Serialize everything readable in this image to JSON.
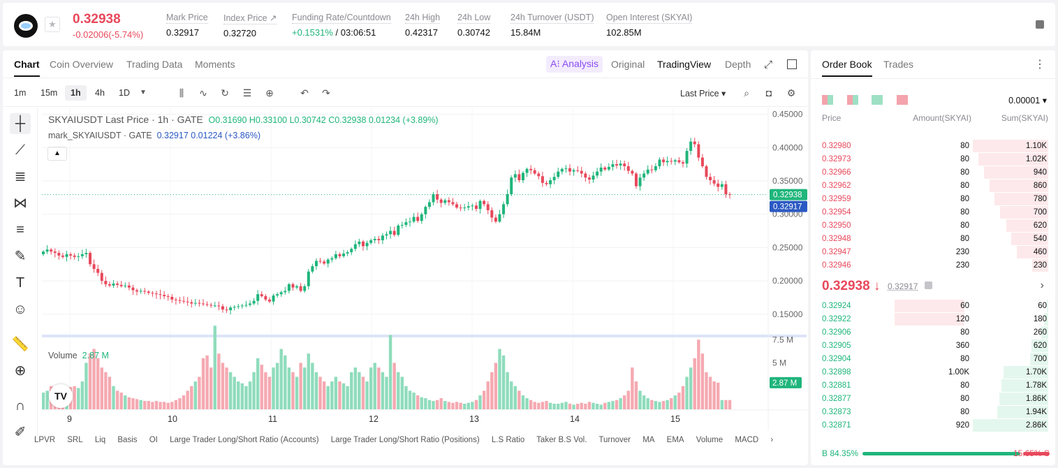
{
  "header": {
    "last_price": "0.32938",
    "change": "-0.02006(-5.74%)",
    "stats": [
      {
        "label": "Mark Price",
        "value": "0.32917"
      },
      {
        "label": "Index Price ↗",
        "value": "0.32720"
      },
      {
        "label": "Funding Rate/Countdown",
        "value_green": "+0.1531%",
        "value": "/ 03:06:51"
      },
      {
        "label": "24h High",
        "value": "0.42317"
      },
      {
        "label": "24h Low",
        "value": "0.30742"
      },
      {
        "label": "24h Turnover (USDT)",
        "value": "15.84M"
      },
      {
        "label": "Open Interest (SKYAI)",
        "value": "102.85M"
      }
    ]
  },
  "chart_tabs": {
    "left": [
      "Chart",
      "Coin Overview",
      "Trading Data",
      "Moments"
    ],
    "ai": "A⁝ Analysis",
    "right": [
      "Original",
      "TradingView",
      "Depth"
    ]
  },
  "toolbar": {
    "timeframes": [
      "1m",
      "15m",
      "1h",
      "4h",
      "1D"
    ],
    "price_type": "Last Price ▾"
  },
  "legend": {
    "main_title": "SKYAIUSDT Last Price · 1h · GATE",
    "ohlc": "O0.31690  H0.33100  L0.30742  C0.32938  0.01234 (+3.89%)",
    "mark_title": "mark_SKYAIUSDT · GATE",
    "mark_values": "0.32917  0.01224 (+3.86%)",
    "volume_label": "Volume",
    "volume_value": "2.87 M"
  },
  "bottom_indicators": [
    "LPVR",
    "SRL",
    "Liq",
    "Basis",
    "OI",
    "Large Trader Long/Short Ratio (Accounts)",
    "Large Trader Long/Short Ratio (Positions)",
    "L.S Ratio",
    "Taker B.S Vol.",
    "Turnover",
    "MA",
    "EMA",
    "Volume",
    "MACD"
  ],
  "chart_data": {
    "type": "candlestick",
    "price_axis": {
      "ticks": [
        "0.45000",
        "0.40000",
        "0.35000",
        "0.30000",
        "0.25000",
        "0.20000",
        "0.15000"
      ],
      "range": [
        0.11,
        0.46
      ]
    },
    "volume_axis": {
      "ticks": [
        "7.5 M",
        "5 M"
      ]
    },
    "x_ticks": [
      "9",
      "10",
      "11",
      "12",
      "13",
      "14",
      "15"
    ],
    "last_price_label": "0.32938",
    "mark_price_label": "0.32917",
    "volume_last_label": "2.87 M",
    "close_series": [
      0.244,
      0.247,
      0.244,
      0.242,
      0.238,
      0.236,
      0.24,
      0.238,
      0.236,
      0.237,
      0.24,
      0.242,
      0.225,
      0.218,
      0.212,
      0.2,
      0.195,
      0.193,
      0.196,
      0.194,
      0.192,
      0.193,
      0.19,
      0.186,
      0.184,
      0.185,
      0.184,
      0.182,
      0.181,
      0.18,
      0.179,
      0.177,
      0.176,
      0.172,
      0.171,
      0.17,
      0.169,
      0.168,
      0.166,
      0.167,
      0.166,
      0.165,
      0.164,
      0.163,
      0.163,
      0.162,
      0.157,
      0.156,
      0.16,
      0.161,
      0.162,
      0.163,
      0.164,
      0.166,
      0.17,
      0.18,
      0.177,
      0.172,
      0.169,
      0.178,
      0.18,
      0.183,
      0.185,
      0.195,
      0.19,
      0.192,
      0.185,
      0.192,
      0.214,
      0.222,
      0.23,
      0.229,
      0.226,
      0.232,
      0.234,
      0.24,
      0.237,
      0.241,
      0.243,
      0.248,
      0.255,
      0.259,
      0.252,
      0.257,
      0.261,
      0.263,
      0.261,
      0.268,
      0.27,
      0.275,
      0.269,
      0.283,
      0.284,
      0.288,
      0.289,
      0.296,
      0.29,
      0.3,
      0.311,
      0.318,
      0.33,
      0.322,
      0.317,
      0.321,
      0.318,
      0.315,
      0.31,
      0.309,
      0.31,
      0.312,
      0.313,
      0.308,
      0.32,
      0.315,
      0.306,
      0.295,
      0.289,
      0.3,
      0.315,
      0.33,
      0.355,
      0.36,
      0.351,
      0.362,
      0.368,
      0.366,
      0.361,
      0.357,
      0.347,
      0.345,
      0.351,
      0.356,
      0.364,
      0.368,
      0.369,
      0.364,
      0.366,
      0.365,
      0.361,
      0.355,
      0.352,
      0.358,
      0.364,
      0.37,
      0.367,
      0.371,
      0.375,
      0.373,
      0.376,
      0.372,
      0.365,
      0.361,
      0.342,
      0.355,
      0.361,
      0.367,
      0.366,
      0.372,
      0.382,
      0.378,
      0.38,
      0.379,
      0.381,
      0.378,
      0.376,
      0.395,
      0.409,
      0.405,
      0.385,
      0.372,
      0.356,
      0.351,
      0.346,
      0.341,
      0.345,
      0.33,
      0.3294
    ],
    "volume_series": [
      1.8,
      2.0,
      2.5,
      2.3,
      2.2,
      1.9,
      2.1,
      2.4,
      2.5,
      2.3,
      3.0,
      5.0,
      6.0,
      6.5,
      5.5,
      4.5,
      4.0,
      3.5,
      2.5,
      2.0,
      1.8,
      1.5,
      1.3,
      1.2,
      1.1,
      1.0,
      0.9,
      0.9,
      0.8,
      0.9,
      0.8,
      0.8,
      0.7,
      0.8,
      1.0,
      1.2,
      1.5,
      2.0,
      2.5,
      3.0,
      3.5,
      5.5,
      5.8,
      4.5,
      9.0,
      6.0,
      5.0,
      4.5,
      4.0,
      3.5,
      3.0,
      2.8,
      2.5,
      3.0,
      4.0,
      5.5,
      4.8,
      4.0,
      3.5,
      4.5,
      5.0,
      6.5,
      5.8,
      4.5,
      4.0,
      3.5,
      5.0,
      4.5,
      6.0,
      5.0,
      4.0,
      3.5,
      3.0,
      2.5,
      3.0,
      3.5,
      3.0,
      2.8,
      2.5,
      4.0,
      4.5,
      4.0,
      3.5,
      3.0,
      4.5,
      5.0,
      4.5,
      4.0,
      3.5,
      8.0,
      5.0,
      4.0,
      3.5,
      2.5,
      2.0,
      1.8,
      1.5,
      1.3,
      1.2,
      1.0,
      0.9,
      1.0,
      1.2,
      0.9,
      0.8,
      0.7,
      0.8,
      0.7,
      0.6,
      0.7,
      0.8,
      1.0,
      1.5,
      2.0,
      3.0,
      4.0,
      5.0,
      6.5,
      5.8,
      4.0,
      3.0,
      2.5,
      2.0,
      1.5,
      1.2,
      1.0,
      0.8,
      0.7,
      0.8,
      0.9,
      0.7,
      0.6,
      0.6,
      0.7,
      0.8,
      0.6,
      0.5,
      0.6,
      0.7,
      0.6,
      0.8,
      0.7,
      0.6,
      0.5,
      0.7,
      0.8,
      0.9,
      1.0,
      1.2,
      1.5,
      2.0,
      4.5,
      3.0,
      2.0,
      1.5,
      1.2,
      1.0,
      0.9,
      0.8,
      0.9,
      1.0,
      1.2,
      1.5,
      1.8,
      2.5,
      3.5,
      4.5,
      5.5,
      7.5,
      6.0,
      4.0,
      3.5,
      3.0,
      2.87
    ]
  },
  "orderbook": {
    "tabs": [
      "Order Book",
      "Trades"
    ],
    "precision": "0.00001 ▾",
    "headers": {
      "price": "Price",
      "amount": "Amount(SKYAI)",
      "sum": "Sum(SKYAI)"
    },
    "asks": [
      {
        "price": "0.32980",
        "amount": "80",
        "sum": "1.10K",
        "depth": 1.0
      },
      {
        "price": "0.32973",
        "amount": "80",
        "sum": "1.02K",
        "depth": 0.93
      },
      {
        "price": "0.32966",
        "amount": "80",
        "sum": "940",
        "depth": 0.85
      },
      {
        "price": "0.32962",
        "amount": "80",
        "sum": "860",
        "depth": 0.78
      },
      {
        "price": "0.32959",
        "amount": "80",
        "sum": "780",
        "depth": 0.71
      },
      {
        "price": "0.32954",
        "amount": "80",
        "sum": "700",
        "depth": 0.64
      },
      {
        "price": "0.32950",
        "amount": "80",
        "sum": "620",
        "depth": 0.56
      },
      {
        "price": "0.32948",
        "amount": "80",
        "sum": "540",
        "depth": 0.49
      },
      {
        "price": "0.32947",
        "amount": "230",
        "sum": "460",
        "depth": 0.42
      },
      {
        "price": "0.32946",
        "amount": "230",
        "sum": "230",
        "depth": 0.21
      }
    ],
    "mid_price": "0.32938 ↓",
    "mid_mark": "0.32917",
    "bids": [
      {
        "price": "0.32924",
        "amount": "60",
        "sum": "60",
        "depth": 0.02,
        "amt_depth": 0.35
      },
      {
        "price": "0.32922",
        "amount": "120",
        "sum": "180",
        "depth": 0.06,
        "amt_depth": 0.35
      },
      {
        "price": "0.32906",
        "amount": "80",
        "sum": "260",
        "depth": 0.09,
        "amt_depth": 0
      },
      {
        "price": "0.32905",
        "amount": "360",
        "sum": "620",
        "depth": 0.22,
        "amt_depth": 0
      },
      {
        "price": "0.32904",
        "amount": "80",
        "sum": "700",
        "depth": 0.24,
        "amt_depth": 0
      },
      {
        "price": "0.32898",
        "amount": "1.00K",
        "sum": "1.70K",
        "depth": 0.59,
        "amt_depth": 0
      },
      {
        "price": "0.32881",
        "amount": "80",
        "sum": "1.78K",
        "depth": 0.62,
        "amt_depth": 0
      },
      {
        "price": "0.32877",
        "amount": "80",
        "sum": "1.86K",
        "depth": 0.65,
        "amt_depth": 0
      },
      {
        "price": "0.32873",
        "amount": "80",
        "sum": "1.94K",
        "depth": 0.68,
        "amt_depth": 0
      },
      {
        "price": "0.32871",
        "amount": "920",
        "sum": "2.86K",
        "depth": 1.0,
        "amt_depth": 0
      }
    ],
    "ratio": {
      "buy_label": "B 84.35%",
      "sell_label": "15.65% S",
      "buy": 84.35
    }
  },
  "colors": {
    "up": "#1fb57b",
    "down": "#e8485b",
    "mark": "#2b59c3"
  }
}
